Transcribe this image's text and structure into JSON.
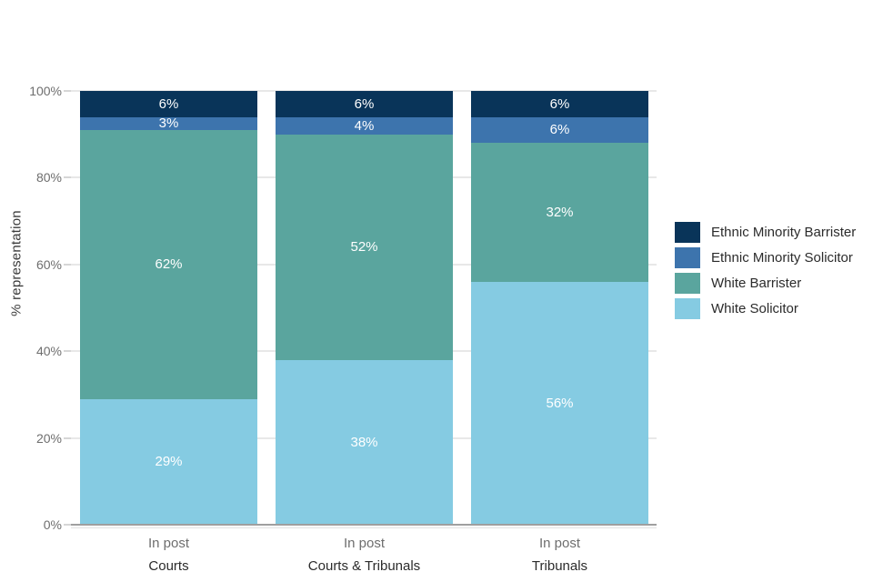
{
  "chart_data": {
    "type": "bar",
    "stacked": true,
    "title": "",
    "ylabel": "% representation",
    "xlabel": "",
    "ylim": [
      0,
      100
    ],
    "yticks": [
      0,
      20,
      40,
      60,
      80,
      100
    ],
    "ytick_format": "{v}%",
    "data_label_format": "{v}%",
    "grid": true,
    "legend_position": "right",
    "categories": [
      {
        "label": "In post",
        "group": "Courts"
      },
      {
        "label": "In post",
        "group": "Courts & Tribunals"
      },
      {
        "label": "In post",
        "group": "Tribunals"
      }
    ],
    "series": [
      {
        "name": "Ethnic Minority Barrister",
        "color": "#093459",
        "values": [
          6,
          6,
          6
        ]
      },
      {
        "name": "Ethnic Minority Solicitor",
        "color": "#3d74ad",
        "values": [
          3,
          4,
          6
        ]
      },
      {
        "name": "White Barrister",
        "color": "#5aa59e",
        "values": [
          62,
          52,
          32
        ]
      },
      {
        "name": "White Solicitor",
        "color": "#85cbe2",
        "values": [
          29,
          38,
          56
        ]
      }
    ]
  },
  "colors": {
    "background": "#ffffff",
    "gridline": "#e8e8e8",
    "axis_line": "#9f9f9f",
    "tick_text": "#6e6e6e",
    "label_text": "#2b2b2b",
    "bar_value_text": "#ffffff"
  }
}
